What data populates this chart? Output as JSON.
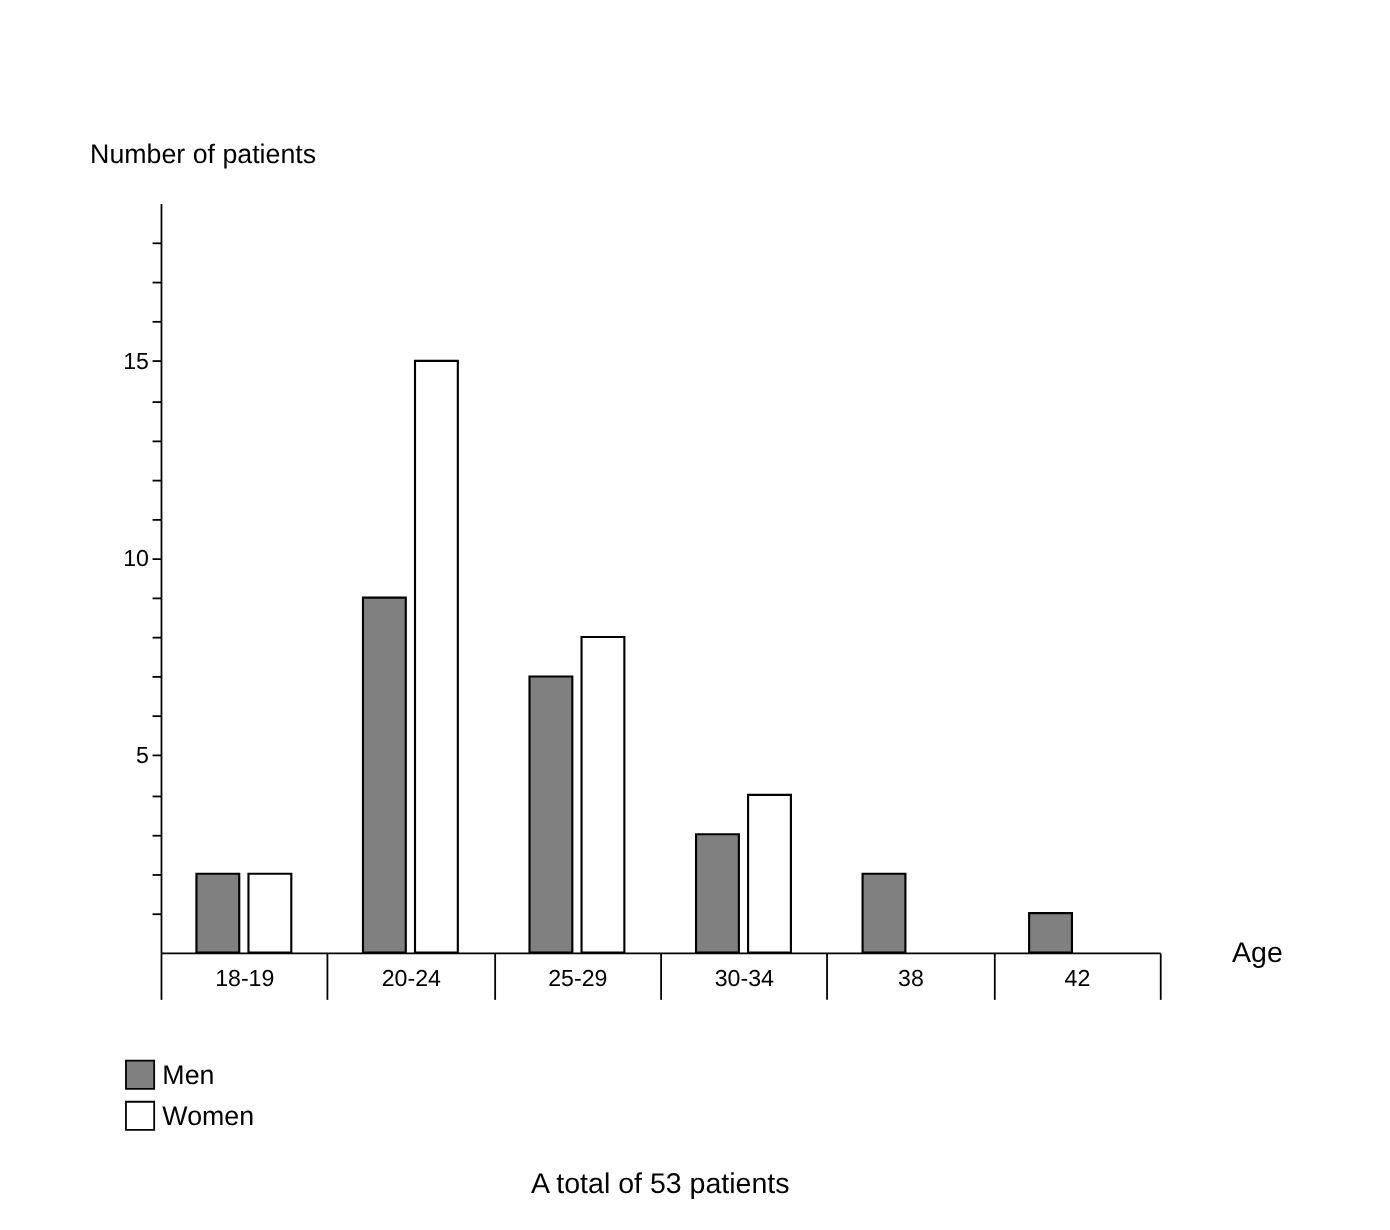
{
  "chart_data": {
    "type": "bar",
    "xlabel": "Age",
    "ylabel": "Number of patients",
    "categories": [
      "18-19",
      "20-24",
      "25-29",
      "30-34",
      "38",
      "42"
    ],
    "series": [
      {
        "name": "Men",
        "color": "#808080",
        "values": [
          2,
          9,
          7,
          3,
          2,
          1
        ]
      },
      {
        "name": "Women",
        "color": "#ffffff",
        "values": [
          2,
          15,
          8,
          4,
          null,
          null
        ]
      }
    ],
    "ylim": [
      0,
      19
    ],
    "yticks": [
      {
        "value": 1,
        "label": null
      },
      {
        "value": 2,
        "label": null
      },
      {
        "value": 3,
        "label": null
      },
      {
        "value": 4,
        "label": null
      },
      5,
      {
        "value": 6,
        "label": null
      },
      {
        "value": 7,
        "label": null
      },
      {
        "value": 8,
        "label": null
      },
      {
        "value": 9,
        "label": null
      },
      10,
      {
        "value": 11,
        "label": null
      },
      {
        "value": 12,
        "label": null
      },
      {
        "value": 13,
        "label": null
      },
      {
        "value": 14,
        "label": null
      },
      15,
      {
        "value": 16,
        "label": null
      },
      {
        "value": 17,
        "label": null
      },
      {
        "value": 18,
        "label": null
      }
    ],
    "grid": false,
    "legend": "bottom left",
    "annotations": [
      "A total of 53 patients"
    ]
  }
}
